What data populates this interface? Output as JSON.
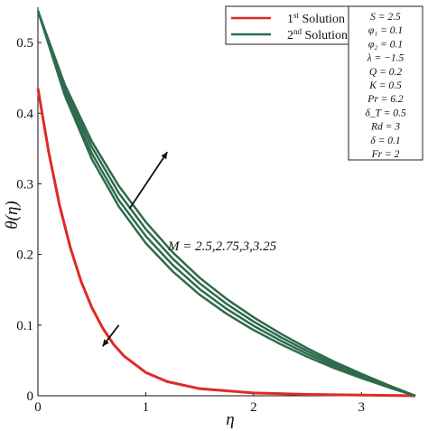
{
  "chart_data": {
    "type": "line",
    "xlabel": "η",
    "ylabel": "θ(η)",
    "xlim": [
      0,
      3.5
    ],
    "ylim": [
      0,
      0.55
    ],
    "x_ticks": [
      "0",
      "1",
      "2",
      "3"
    ],
    "y_ticks": [
      "0",
      "0.1",
      "0.2",
      "0.3",
      "0.4",
      "0.5"
    ],
    "grid": false,
    "legend_position": "top-right",
    "legend": [
      {
        "label": "1st Solution",
        "base": "1",
        "sup": "st",
        "rest": " Solution",
        "color": "#e02a24"
      },
      {
        "label": "2nd Solution",
        "base": "2",
        "sup": "nd",
        "rest": " Solution",
        "color": "#2e6b4d"
      }
    ],
    "parameters": [
      "S = 2.5",
      "φ₁ = 0.1",
      "φ₂ = 0.1",
      "λ = −1.5",
      "Q = 0.2",
      "K = 0.5",
      "Pr = 6.2",
      "δ_T = 0.5",
      "Rd = 3",
      "δ = 0.1",
      "Fr = 2"
    ],
    "annotation": "M = 2.5,2.75,3,3.25",
    "series": [
      {
        "name": "1st Solution",
        "color": "#e02a24",
        "x": [
          0,
          0.05,
          0.1,
          0.2,
          0.3,
          0.4,
          0.5,
          0.6,
          0.7,
          0.8,
          1.0,
          1.2,
          1.5,
          2.0,
          2.5,
          3.0,
          3.5
        ],
        "y": [
          0.435,
          0.39,
          0.345,
          0.27,
          0.21,
          0.162,
          0.125,
          0.096,
          0.073,
          0.056,
          0.033,
          0.02,
          0.01,
          0.004,
          0.002,
          0.001,
          0.0
        ]
      },
      {
        "name": "2nd Solution M=2.5",
        "color": "#2e6b4d",
        "x": [
          0,
          0.25,
          0.5,
          0.75,
          1.0,
          1.25,
          1.5,
          1.75,
          2.0,
          2.25,
          2.5,
          2.75,
          3.0,
          3.25,
          3.5
        ],
        "y": [
          0.545,
          0.425,
          0.335,
          0.268,
          0.216,
          0.176,
          0.143,
          0.116,
          0.093,
          0.073,
          0.055,
          0.039,
          0.025,
          0.012,
          0.0
        ]
      },
      {
        "name": "2nd Solution M=2.75",
        "color": "#2e6b4d",
        "x": [
          0,
          0.25,
          0.5,
          0.75,
          1.0,
          1.25,
          1.5,
          1.75,
          2.0,
          2.25,
          2.5,
          2.75,
          3.0,
          3.25,
          3.5
        ],
        "y": [
          0.545,
          0.43,
          0.343,
          0.277,
          0.226,
          0.185,
          0.151,
          0.123,
          0.099,
          0.078,
          0.059,
          0.042,
          0.027,
          0.013,
          0.0
        ]
      },
      {
        "name": "2nd Solution M=3",
        "color": "#2e6b4d",
        "x": [
          0,
          0.25,
          0.5,
          0.75,
          1.0,
          1.25,
          1.5,
          1.75,
          2.0,
          2.25,
          2.5,
          2.75,
          3.0,
          3.25,
          3.5
        ],
        "y": [
          0.545,
          0.435,
          0.352,
          0.287,
          0.236,
          0.194,
          0.159,
          0.13,
          0.105,
          0.083,
          0.063,
          0.045,
          0.029,
          0.014,
          0.0
        ]
      },
      {
        "name": "2nd Solution M=3.25",
        "color": "#2e6b4d",
        "x": [
          0,
          0.25,
          0.5,
          0.75,
          1.0,
          1.25,
          1.5,
          1.75,
          2.0,
          2.25,
          2.5,
          2.75,
          3.0,
          3.25,
          3.5
        ],
        "y": [
          0.545,
          0.44,
          0.36,
          0.297,
          0.246,
          0.203,
          0.167,
          0.137,
          0.111,
          0.088,
          0.067,
          0.048,
          0.031,
          0.015,
          0.0
        ]
      }
    ],
    "arrows": [
      {
        "name": "second-solution-increase-arrow",
        "from": [
          0.85,
          0.265
        ],
        "to": [
          1.2,
          0.345
        ]
      },
      {
        "name": "first-solution-decrease-arrow",
        "from": [
          0.75,
          0.1
        ],
        "to": [
          0.6,
          0.07
        ]
      }
    ]
  }
}
